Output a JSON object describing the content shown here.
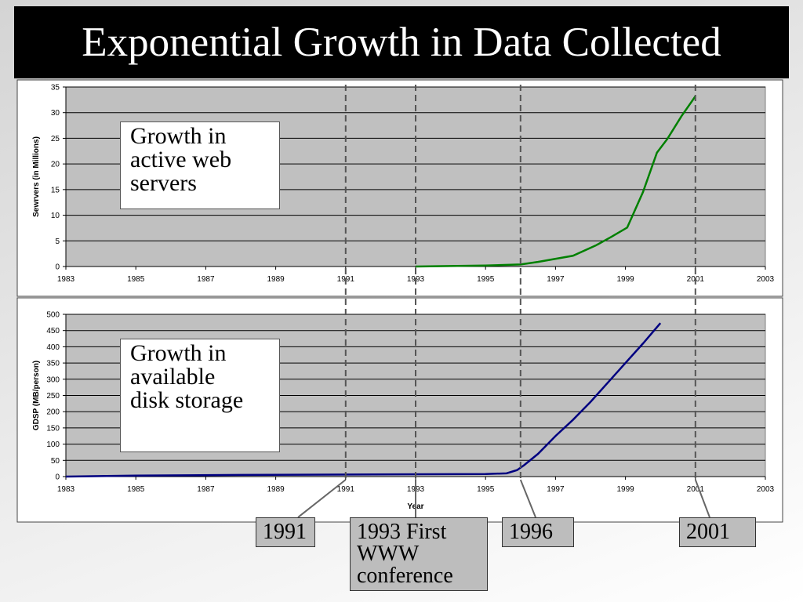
{
  "title": "Exponential Growth in Data Collected",
  "markers": [
    {
      "x": 1991,
      "label": "1991"
    },
    {
      "x": 1993,
      "label": "1993 First WWW conference"
    },
    {
      "x": 1996,
      "label": "1996"
    },
    {
      "x": 2001,
      "label": "2001"
    }
  ],
  "chart_data": [
    {
      "type": "line",
      "ylabel": "Sewrvers (in Millions)",
      "annotation": "Growth in active web servers",
      "color": "#008000",
      "x": [
        1993,
        1994,
        1995,
        1996,
        1996.5,
        1997.5,
        1998.15,
        1998.6,
        1999.05,
        1999.2,
        1999.5,
        1999.9,
        2000.2,
        2000.6,
        2001
      ],
      "values": [
        0,
        0.1,
        0.2,
        0.4,
        0.9,
        2.1,
        4.1,
        5.8,
        7.6,
        9.9,
        14.5,
        22.2,
        24.9,
        29.3,
        33.2
      ],
      "xlim": [
        1983,
        2003
      ],
      "xticks": [
        1983,
        1985,
        1987,
        1989,
        1991,
        1993,
        1995,
        1997,
        1999,
        2001,
        2003
      ],
      "ylim": [
        0,
        35
      ],
      "yticks": [
        0,
        5,
        10,
        15,
        20,
        25,
        30,
        35
      ],
      "grid": true
    },
    {
      "type": "line",
      "ylabel": "GDSP (MB/person)",
      "xlabel": "Year",
      "annotation": "Growth in available disk storage",
      "color": "#000080",
      "x": [
        1983,
        1985,
        1988,
        1995,
        1995.6,
        1995.9,
        1996.1,
        1996.5,
        1997,
        1997.5,
        1998,
        1998.5,
        1999,
        1999.5,
        2000
      ],
      "values": [
        0,
        3,
        5,
        8,
        10,
        20,
        35,
        70,
        125,
        175,
        230,
        290,
        350,
        410,
        473
      ],
      "xlim": [
        1983,
        2003
      ],
      "xticks": [
        1983,
        1985,
        1987,
        1989,
        1991,
        1993,
        1995,
        1997,
        1999,
        2001,
        2003
      ],
      "ylim": [
        0,
        500
      ],
      "yticks": [
        0,
        50,
        100,
        150,
        200,
        250,
        300,
        350,
        400,
        450,
        500
      ],
      "grid": true
    }
  ]
}
